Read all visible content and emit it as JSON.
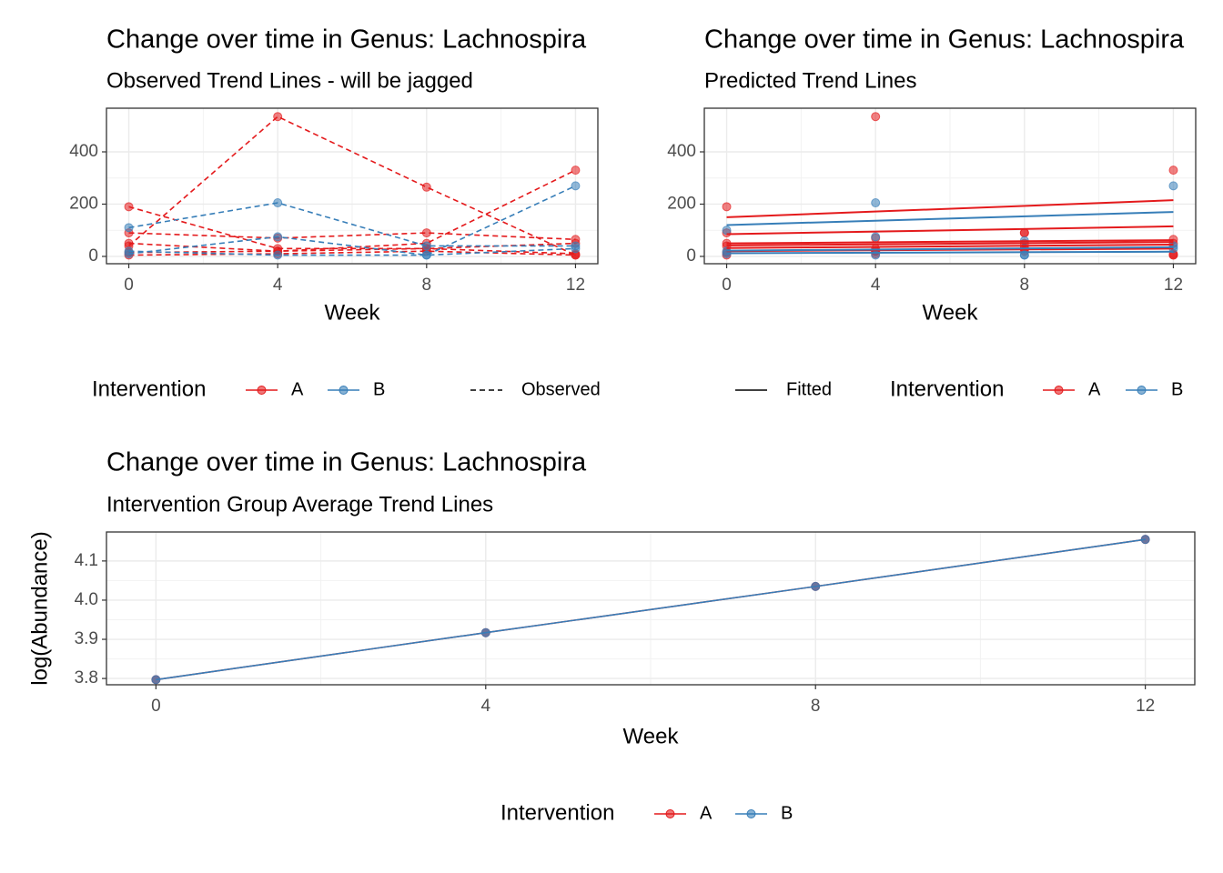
{
  "chart_data": [
    {
      "type": "line",
      "title": "Change over time in Genus: Lachnospira",
      "subtitle": "Observed Trend Lines - will be jagged",
      "x_label": "Week",
      "x": [
        0,
        4,
        8,
        12
      ],
      "xlim": [
        -0.6,
        12.6
      ],
      "xticks": [
        0,
        4,
        8,
        12
      ],
      "ylim": [
        -28,
        567
      ],
      "yticks": [
        0,
        200,
        400
      ],
      "grid": true,
      "linestyle": "dashed",
      "series": [
        {
          "color": "#E41A1C",
          "values": [
            190,
            30,
            30,
            10
          ]
        },
        {
          "color": "#E41A1C",
          "values": [
            40,
            535,
            265,
            5
          ]
        },
        {
          "color": "#E41A1C",
          "values": [
            15,
            20,
            50,
            330
          ]
        },
        {
          "color": "#E41A1C",
          "values": [
            90,
            70,
            90,
            65
          ]
        },
        {
          "color": "#E41A1C",
          "values": [
            50,
            20,
            30,
            50
          ]
        },
        {
          "color": "#E41A1C",
          "values": [
            5,
            10,
            20,
            5
          ]
        },
        {
          "color": "#377EB8",
          "values": [
            110,
            205,
            40,
            40
          ]
        },
        {
          "color": "#377EB8",
          "values": [
            10,
            75,
            5,
            270
          ]
        },
        {
          "color": "#377EB8",
          "values": [
            20,
            5,
            5,
            30
          ]
        }
      ],
      "legend": {
        "title": "Intervention",
        "items": [
          {
            "name": "A",
            "color": "#E41A1C"
          },
          {
            "name": "B",
            "color": "#377EB8"
          }
        ],
        "linetype": "Observed"
      }
    },
    {
      "type": "fitted",
      "title": "Change over time in Genus: Lachnospira",
      "subtitle": "Predicted Trend Lines",
      "x_label": "Week",
      "x": [
        0,
        4,
        8,
        12
      ],
      "xlim": [
        -0.6,
        12.6
      ],
      "xticks": [
        0,
        4,
        8,
        12
      ],
      "ylim": [
        -28,
        567
      ],
      "yticks": [
        0,
        200,
        400
      ],
      "grid": true,
      "series": [
        {
          "color": "#E41A1C",
          "values": [
            190,
            30,
            30,
            10
          ]
        },
        {
          "color": "#E41A1C",
          "values": [
            40,
            535,
            90,
            5
          ]
        },
        {
          "color": "#E41A1C",
          "values": [
            15,
            20,
            50,
            330
          ]
        },
        {
          "color": "#E41A1C",
          "values": [
            90,
            70,
            90,
            65
          ]
        },
        {
          "color": "#E41A1C",
          "values": [
            50,
            20,
            30,
            50
          ]
        },
        {
          "color": "#E41A1C",
          "values": [
            5,
            10,
            20,
            5
          ]
        },
        {
          "color": "#377EB8",
          "values": [
            100,
            205,
            60,
            270
          ]
        },
        {
          "color": "#377EB8",
          "values": [
            10,
            75,
            5,
            40
          ]
        },
        {
          "color": "#377EB8",
          "values": [
            20,
            5,
            5,
            30
          ]
        }
      ],
      "fit_x": [
        0,
        12
      ],
      "fitted": [
        {
          "color": "#E41A1C",
          "values": [
            150,
            215
          ]
        },
        {
          "color": "#E41A1C",
          "values": [
            85,
            115
          ]
        },
        {
          "color": "#E41A1C",
          "values": [
            50,
            62
          ]
        },
        {
          "color": "#E41A1C",
          "values": [
            42,
            55
          ]
        },
        {
          "color": "#E41A1C",
          "values": [
            32,
            45
          ]
        },
        {
          "color": "#E41A1C",
          "values": [
            20,
            30
          ]
        },
        {
          "color": "#377EB8",
          "values": [
            120,
            170
          ]
        },
        {
          "color": "#377EB8",
          "values": [
            22,
            35
          ]
        },
        {
          "color": "#377EB8",
          "values": [
            12,
            18
          ]
        }
      ],
      "legend": {
        "title": "Intervention",
        "items": [
          {
            "name": "A",
            "color": "#E41A1C"
          },
          {
            "name": "B",
            "color": "#377EB8"
          }
        ],
        "linetype": "Fitted"
      }
    },
    {
      "type": "line",
      "title": "Change over time in Genus: Lachnospira",
      "subtitle": "Intervention Group Average Trend Lines",
      "x_label": "Week",
      "y_label": "log(Abundance)",
      "x": [
        0,
        4,
        8,
        12
      ],
      "xlim": [
        -0.6,
        12.6
      ],
      "xticks": [
        0,
        4,
        8,
        12
      ],
      "ylim": [
        3.784,
        4.174
      ],
      "yticks": [
        3.8,
        3.9,
        {
          "value": 4,
          "label": "4.0"
        },
        4.1
      ],
      "grid": true,
      "linestyle": "solid",
      "series": [
        {
          "name": "A",
          "color": "#E41A1C",
          "values": [
            3.797,
            3.917,
            4.035,
            4.155
          ]
        },
        {
          "name": "B",
          "color": "#377EB8",
          "values": [
            3.797,
            3.917,
            4.035,
            4.155
          ]
        }
      ],
      "legend_title": "Intervention"
    }
  ]
}
